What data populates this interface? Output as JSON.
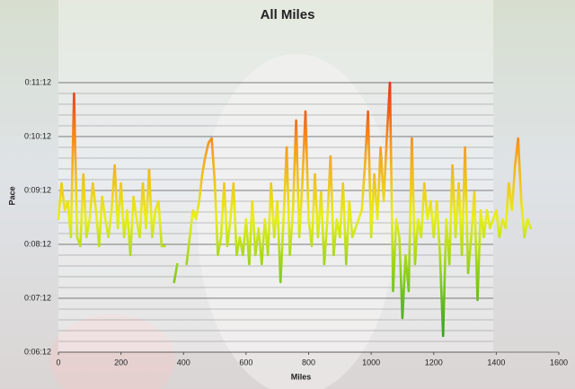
{
  "chart_data": {
    "type": "line",
    "title": "All Miles",
    "x_label": "Miles",
    "y_label": "Pace",
    "xlim": [
      0,
      1600
    ],
    "xticks": [
      0,
      200,
      400,
      600,
      800,
      1000,
      1200,
      1400,
      1600
    ],
    "ylim": [
      372,
      672
    ],
    "yticks": [
      {
        "value": 372,
        "label": "0:06:12"
      },
      {
        "value": 432,
        "label": "0:07:12"
      },
      {
        "value": 492,
        "label": "0:08:12"
      },
      {
        "value": 552,
        "label": "0:09:12"
      },
      {
        "value": 612,
        "label": "0:10:12"
      },
      {
        "value": 672,
        "label": "0:11:12"
      }
    ],
    "grid": true,
    "colors": [
      "#1f9a1f",
      "#7cc81e",
      "#e8ef1a",
      "#f5a020",
      "#e8301a"
    ],
    "series": [
      {
        "name": "Pace",
        "x": [
          0,
          10,
          20,
          30,
          40,
          50,
          60,
          70,
          80,
          90,
          100,
          110,
          120,
          130,
          140,
          150,
          160,
          170,
          180,
          190,
          200,
          210,
          220,
          230,
          240,
          250,
          260,
          270,
          280,
          290,
          300,
          310,
          320,
          330,
          340,
          350,
          360,
          370,
          380,
          390,
          400,
          410,
          420,
          430,
          440,
          450,
          460,
          470,
          480,
          490,
          500,
          510,
          520,
          530,
          540,
          550,
          560,
          570,
          580,
          590,
          600,
          610,
          620,
          630,
          640,
          650,
          660,
          670,
          680,
          690,
          700,
          710,
          720,
          730,
          740,
          750,
          760,
          770,
          780,
          790,
          800,
          810,
          820,
          830,
          840,
          850,
          860,
          870,
          880,
          890,
          900,
          910,
          920,
          930,
          940,
          950,
          960,
          970,
          980,
          990,
          1000,
          1010,
          1020,
          1030,
          1040,
          1050,
          1060,
          1070,
          1080,
          1090,
          1100,
          1110,
          1120,
          1130,
          1140,
          1150,
          1160,
          1170,
          1180,
          1190,
          1200,
          1210,
          1220,
          1230,
          1240,
          1250,
          1260,
          1270,
          1280,
          1290,
          1300,
          1310,
          1320,
          1330,
          1340,
          1350,
          1360,
          1370,
          1380,
          1390,
          1400,
          1410,
          1420,
          1430,
          1440,
          1450,
          1460,
          1470,
          1480,
          1490,
          1500,
          1510
        ],
        "values": [
          520,
          560,
          530,
          540,
          500,
          660,
          500,
          490,
          570,
          500,
          520,
          560,
          530,
          490,
          545,
          520,
          500,
          530,
          580,
          510,
          560,
          500,
          530,
          480,
          545,
          520,
          500,
          560,
          510,
          575,
          500,
          530,
          540,
          490,
          490,
          null,
          null,
          450,
          470,
          null,
          null,
          470,
          500,
          530,
          520,
          540,
          570,
          590,
          605,
          610,
          560,
          480,
          500,
          560,
          490,
          520,
          560,
          480,
          500,
          480,
          520,
          470,
          540,
          480,
          510,
          470,
          520,
          480,
          560,
          500,
          540,
          450,
          520,
          600,
          480,
          530,
          630,
          500,
          560,
          640,
          520,
          490,
          570,
          500,
          550,
          470,
          520,
          590,
          480,
          520,
          500,
          560,
          470,
          540,
          500,
          510,
          520,
          530,
          580,
          640,
          500,
          570,
          520,
          600,
          540,
          610,
          672,
          440,
          520,
          500,
          410,
          480,
          440,
          610,
          470,
          520,
          500,
          560,
          520,
          540,
          500,
          540,
          480,
          390,
          520,
          470,
          580,
          500,
          560,
          480,
          600,
          460,
          500,
          550,
          430,
          530,
          500,
          530,
          510,
          520,
          530,
          500,
          520,
          510,
          560,
          530,
          580,
          610,
          540,
          500,
          520,
          510
        ]
      }
    ]
  }
}
